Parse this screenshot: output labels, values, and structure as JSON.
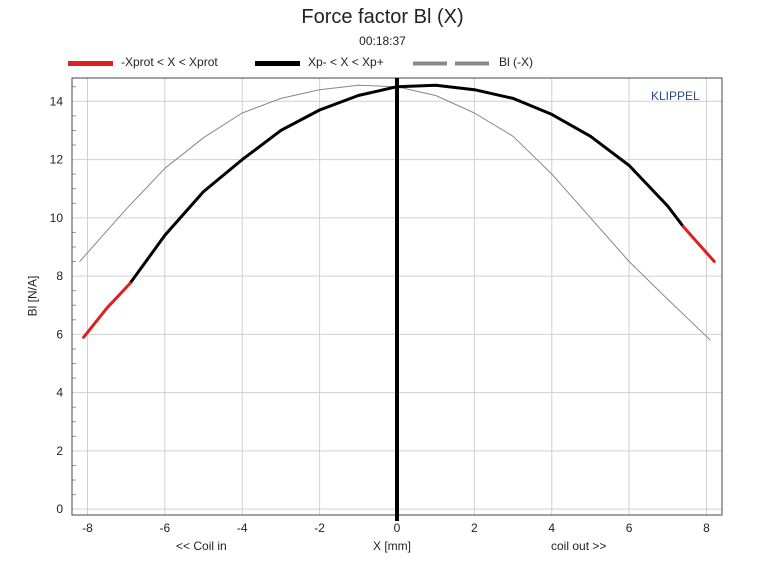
{
  "chart_data": {
    "type": "line",
    "title": "Force factor Bl (X)",
    "subtitle": "00:18:37",
    "xlabel": "X [mm]",
    "ylabel": "Bl [N/A]",
    "xlabel_left": "<< Coil in",
    "xlabel_right": "coil out >>",
    "watermark": "KLIPPEL",
    "xlim": [
      -8.4,
      8.4
    ],
    "ylim": [
      -0.2,
      14.8
    ],
    "x_ticks": [
      -8,
      -6,
      -4,
      -2,
      0,
      2,
      4,
      6,
      8
    ],
    "y_ticks": [
      0,
      2,
      4,
      6,
      8,
      10,
      12,
      14
    ],
    "grid": true,
    "legend_position": "top",
    "marker_x": 0,
    "series": [
      {
        "name": "-Xprot < X < Xprot",
        "color": "#e02020",
        "x": [
          -8.1,
          -7.5,
          -6.9
        ],
        "y": [
          5.9,
          6.9,
          7.75
        ]
      },
      {
        "name": "Xp- < X < Xp+",
        "color": "#000000",
        "x": [
          -6.9,
          -6,
          -5,
          -4,
          -3,
          -2,
          -1,
          0,
          1,
          2,
          3,
          4,
          5,
          6,
          7,
          7.4
        ],
        "y": [
          7.75,
          9.4,
          10.9,
          12.0,
          13.0,
          13.7,
          14.2,
          14.5,
          14.55,
          14.4,
          14.1,
          13.55,
          12.8,
          11.8,
          10.4,
          9.7
        ]
      },
      {
        "name": "Bl (-X)",
        "color": "#888888",
        "x": [
          -8.2,
          -7,
          -6,
          -5,
          -4,
          -3,
          -2,
          -1,
          0,
          1,
          2,
          3,
          4,
          5,
          6,
          7,
          8.1
        ],
        "y": [
          8.5,
          10.3,
          11.7,
          12.75,
          13.6,
          14.1,
          14.4,
          14.55,
          14.5,
          14.2,
          13.6,
          12.8,
          11.5,
          10.0,
          8.5,
          7.2,
          5.8
        ]
      },
      {
        "name": "-Xprot < X < Xprot",
        "color": "#e02020",
        "x": [
          7.4,
          7.8,
          8.2
        ],
        "y": [
          9.7,
          9.1,
          8.5
        ]
      }
    ]
  }
}
